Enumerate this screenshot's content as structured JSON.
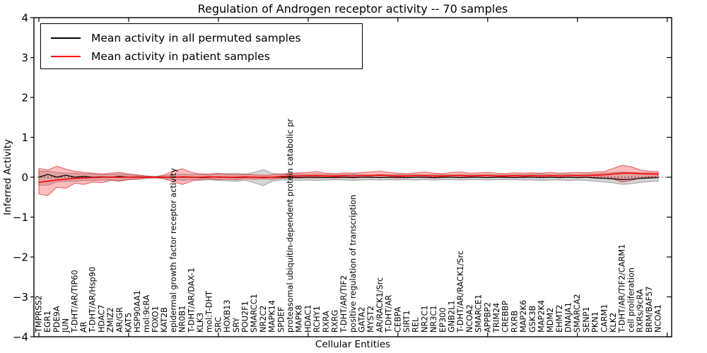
{
  "figure": {
    "title": "Regulation of Androgen receptor activity -- 70 samples",
    "xlabel": "Cellular Entities",
    "ylabel": "Inferred Activity"
  },
  "colors": {
    "permuted_line": "#000000",
    "patient_line": "#ff0000",
    "permuted_band_fill": "rgba(128,128,128,0.32)",
    "permuted_band_edge": "rgba(110,110,110,0.55)",
    "patient_band_fill": "rgba(255,55,55,0.33)",
    "patient_band_edge": "rgba(215,40,40,0.65)",
    "frame": "#000000"
  },
  "chart_data": {
    "type": "line",
    "title": "Regulation of Androgen receptor activity -- 70 samples",
    "xlabel": "Cellular Entities",
    "ylabel": "Inferred Activity",
    "ylim": [
      -4,
      4
    ],
    "yticks": [
      -4,
      -3,
      -2,
      -1,
      0,
      1,
      2,
      3,
      4
    ],
    "xtick_interval": 10,
    "grid": false,
    "legend_position": "upper left",
    "zero_line": {
      "style": "dotted",
      "color": "#000000",
      "y": 0
    },
    "categories": [
      "TMPRSS2",
      "EGR1",
      "PDE9A",
      "JUN",
      "T-DHT/AR/TIP60",
      "AR",
      "T-DHT/AR/Hsp90",
      "HDAC7",
      "ZMIZ2",
      "AR/GR",
      "KAT5",
      "HSP90AA1",
      "mol:9cRA",
      "FOXO1",
      "KAT2B",
      "epidermal growth factor receptor activity",
      "NR0B1",
      "T-DHT/AR/DAX-1",
      "KLK3",
      "mol:T-DHT",
      "SRC",
      "HOXB13",
      "SRY",
      "POU2F1",
      "SMARCC1",
      "NR2C2",
      "MAPK14",
      "SPDEF",
      "proteasomal ubiquitin-dependent protein catabolic pr",
      "MAPK8",
      "HDAC1",
      "RCHY1",
      "RXRA",
      "RXRG",
      "T-DHT/AR/TIF2",
      "positive regulation of transcription",
      "GATA2",
      "MYST2",
      "AR/RACK1/Src",
      "T-DHT/AR",
      "CEBPA",
      "SIRT1",
      "REL",
      "NR2C1",
      "NR3C1",
      "EP300",
      "GNB2L1",
      "T-DHT/AR/RACK1/Src",
      "NCOA2",
      "SMARCE1",
      "APPBP2",
      "TRIM24",
      "CREBBP",
      "RXRB",
      "MAP2K6",
      "GSK3B",
      "MAP2K4",
      "MDM2",
      "EHMT2",
      "DNAJA1",
      "SMARCA2",
      "SENP1",
      "PKN1",
      "CARM1",
      "KLK2",
      "T-DHT/AR/TIF2/CARM1",
      "cell proliferation",
      "RXRs/9cRA",
      "BRM/BAF57",
      "NCOA1"
    ],
    "series": [
      {
        "name": "Mean activity in all permuted samples",
        "color": "#000000",
        "values": [
          0,
          0.07,
          0,
          0.05,
          0,
          0.02,
          0,
          0.01,
          0,
          0.02,
          0,
          0.01,
          0,
          0,
          0,
          0,
          0,
          0,
          -0.01,
          0,
          0.01,
          0,
          -0.01,
          0,
          0,
          -0.01,
          0,
          0,
          0,
          -0.01,
          0,
          0,
          -0.01,
          0,
          0,
          -0.01,
          0,
          0,
          -0.01,
          0,
          0,
          -0.01,
          0,
          0,
          -0.01,
          0,
          0,
          -0.01,
          0,
          0,
          -0.01,
          0,
          0,
          -0.01,
          0,
          0,
          -0.01,
          0,
          -0.01,
          0,
          -0.01,
          0,
          -0.02,
          -0.03,
          -0.04,
          -0.06,
          -0.05,
          -0.03,
          -0.02,
          -0.01
        ]
      },
      {
        "name": "Mean activity in patient samples",
        "color": "#ff0000",
        "values": [
          -0.13,
          -0.1,
          -0.07,
          -0.05,
          -0.03,
          -0.02,
          -0.01,
          0,
          0,
          0,
          0,
          0,
          0,
          0,
          0,
          0,
          0.01,
          0,
          0,
          0.01,
          0,
          0,
          0,
          0.01,
          0,
          0,
          0,
          0.02,
          0.03,
          0.03,
          0.04,
          0.04,
          0.03,
          0.03,
          0.04,
          0.03,
          0.04,
          0.04,
          0.05,
          0.04,
          0.03,
          0.03,
          0.04,
          0.04,
          0.03,
          0.03,
          0.04,
          0.04,
          0.03,
          0.04,
          0.04,
          0.03,
          0.03,
          0.04,
          0.03,
          0.04,
          0.03,
          0.04,
          0.03,
          0.04,
          0.04,
          0.04,
          0.05,
          0.06,
          0.08,
          0.1,
          0.1,
          0.09,
          0.08,
          0.08
        ]
      }
    ],
    "bands": [
      {
        "name": "permuted-samples-std-band",
        "fill": "rgba(128,128,128,0.32)",
        "edge": "rgba(110,110,110,0.55)",
        "upper": [
          0.15,
          0.15,
          0.12,
          0.1,
          0.1,
          0.08,
          0.08,
          0.07,
          0.07,
          0.08,
          0.06,
          0.05,
          0.03,
          0.02,
          0.04,
          0.06,
          0.08,
          0.06,
          0.08,
          0.06,
          0.08,
          0.09,
          0.1,
          0.08,
          0.12,
          0.19,
          0.1,
          0.07,
          0.07,
          0.08,
          0.07,
          0.08,
          0.07,
          0.06,
          0.07,
          0.08,
          0.07,
          0.06,
          0.07,
          0.06,
          0.07,
          0.06,
          0.07,
          0.06,
          0.07,
          0.06,
          0.06,
          0.07,
          0.06,
          0.06,
          0.07,
          0.06,
          0.06,
          0.06,
          0.07,
          0.07,
          0.08,
          0.07,
          0.07,
          0.08,
          0.07,
          0.08,
          0.08,
          0.1,
          0.12,
          0.13,
          0.12,
          0.11,
          0.11,
          0.1
        ],
        "lower": [
          -0.2,
          -0.2,
          -0.12,
          -0.1,
          -0.1,
          -0.08,
          -0.08,
          -0.07,
          -0.07,
          -0.08,
          -0.06,
          -0.05,
          -0.03,
          -0.02,
          -0.04,
          -0.06,
          -0.08,
          -0.06,
          -0.08,
          -0.06,
          -0.08,
          -0.09,
          -0.1,
          -0.08,
          -0.14,
          -0.21,
          -0.1,
          -0.07,
          -0.07,
          -0.08,
          -0.07,
          -0.08,
          -0.07,
          -0.06,
          -0.07,
          -0.08,
          -0.07,
          -0.06,
          -0.07,
          -0.06,
          -0.07,
          -0.06,
          -0.07,
          -0.06,
          -0.07,
          -0.06,
          -0.06,
          -0.07,
          -0.06,
          -0.06,
          -0.07,
          -0.06,
          -0.06,
          -0.06,
          -0.07,
          -0.07,
          -0.08,
          -0.07,
          -0.07,
          -0.08,
          -0.07,
          -0.08,
          -0.1,
          -0.12,
          -0.14,
          -0.18,
          -0.16,
          -0.13,
          -0.11,
          -0.1
        ]
      },
      {
        "name": "patient-samples-std-band",
        "fill": "rgba(255,55,55,0.33)",
        "edge": "rgba(215,40,40,0.65)",
        "upper": [
          0.22,
          0.18,
          0.28,
          0.2,
          0.15,
          0.12,
          0.1,
          0.08,
          0.1,
          0.12,
          0.08,
          0.06,
          0.03,
          0.01,
          0.06,
          0.16,
          0.21,
          0.12,
          0.08,
          0.08,
          0.1,
          0.07,
          0.06,
          0.07,
          0.06,
          0.05,
          0.06,
          0.08,
          0.1,
          0.11,
          0.12,
          0.14,
          0.1,
          0.09,
          0.11,
          0.1,
          0.12,
          0.13,
          0.15,
          0.12,
          0.1,
          0.09,
          0.11,
          0.13,
          0.1,
          0.09,
          0.12,
          0.13,
          0.1,
          0.11,
          0.12,
          0.1,
          0.09,
          0.11,
          0.1,
          0.11,
          0.1,
          0.12,
          0.1,
          0.11,
          0.12,
          0.11,
          0.13,
          0.14,
          0.22,
          0.3,
          0.26,
          0.18,
          0.15,
          0.14
        ],
        "lower": [
          -0.42,
          -0.46,
          -0.25,
          -0.28,
          -0.15,
          -0.18,
          -0.12,
          -0.14,
          -0.08,
          -0.1,
          -0.06,
          -0.05,
          -0.02,
          -0.01,
          -0.04,
          -0.12,
          -0.18,
          -0.1,
          -0.05,
          -0.04,
          -0.06,
          -0.05,
          -0.06,
          -0.04,
          -0.05,
          -0.04,
          -0.05,
          -0.03,
          -0.02,
          -0.02,
          -0.01,
          -0.02,
          -0.01,
          -0.02,
          -0.01,
          -0.02,
          0,
          -0.01,
          0,
          -0.01,
          -0.02,
          -0.01,
          0,
          -0.01,
          -0.02,
          -0.01,
          0,
          -0.01,
          -0.01,
          0,
          -0.01,
          0,
          -0.01,
          0,
          -0.01,
          0,
          -0.01,
          0,
          -0.01,
          0,
          -0.01,
          0,
          0,
          0,
          -0.05,
          -0.12,
          -0.08,
          -0.02,
          0.01,
          0.02
        ]
      }
    ]
  }
}
